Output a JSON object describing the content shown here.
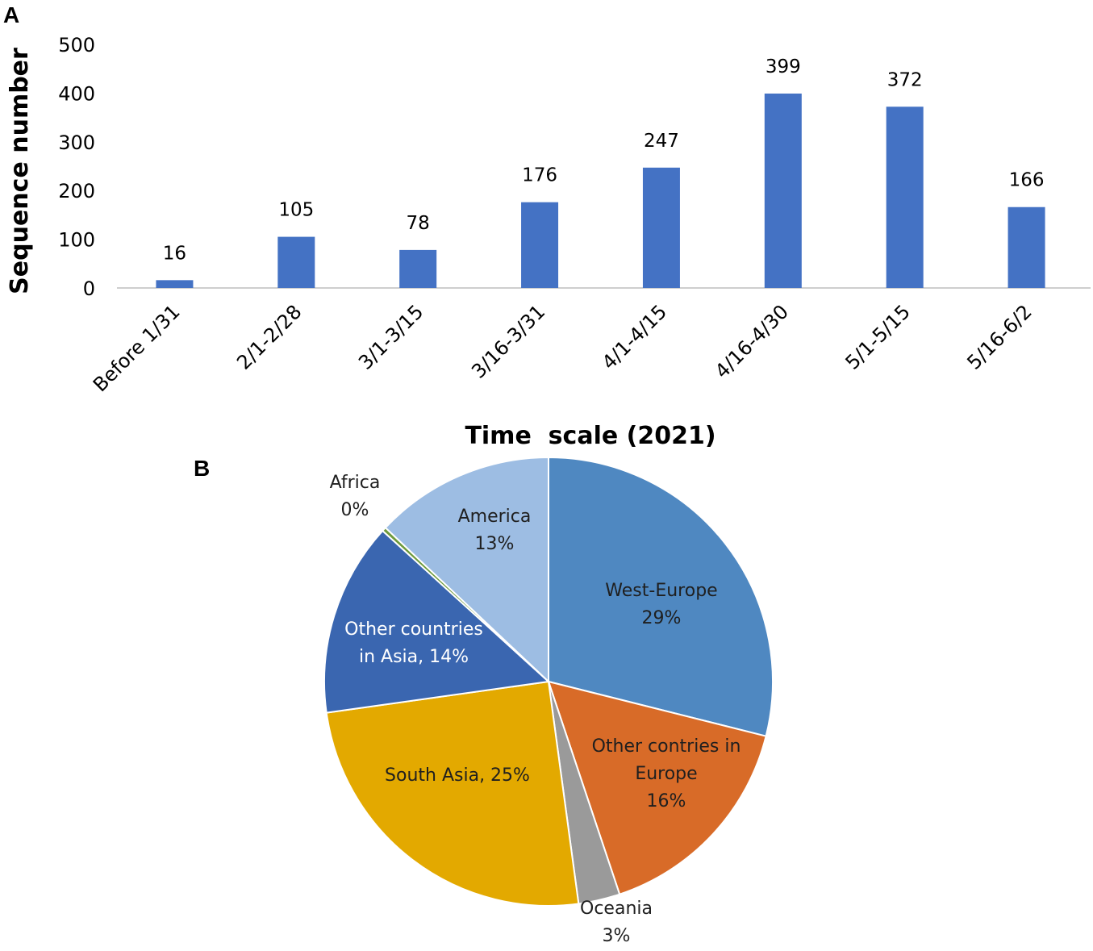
{
  "chart_data": [
    {
      "panel": "A",
      "type": "bar",
      "xlabel": "Time  scale (2021)",
      "ylabel": "Sequence number",
      "ylim": [
        0,
        500
      ],
      "yticks": [
        "0",
        "100",
        "200",
        "300",
        "400",
        "500"
      ],
      "grid": false,
      "color": "#4472c4",
      "categories": [
        "Before 1/31",
        "2/1-2/28",
        "3/1-3/15",
        "3/16-3/31",
        "4/1-4/15",
        "4/16-4/30",
        "5/1-5/15",
        "5/16-6/2"
      ],
      "values": [
        16,
        105,
        78,
        176,
        247,
        399,
        372,
        166
      ],
      "data_labels": [
        "16",
        "105",
        "78",
        "176",
        "247",
        "399",
        "372",
        "166"
      ]
    },
    {
      "panel": "B",
      "type": "pie",
      "slices": [
        {
          "label_lines": [
            "West-Europe",
            "29%"
          ],
          "value": 29,
          "color": "#4f88c1",
          "text_color": "#1f1f1f"
        },
        {
          "label_lines": [
            "Other contries in",
            "Europe",
            "16%"
          ],
          "value": 16,
          "color": "#d86b28",
          "text_color": "#1f1f1f"
        },
        {
          "label_lines": [
            "Oceania",
            "3%"
          ],
          "value": 3,
          "color": "#9a9a9a",
          "text_color": "#1f1f1f"
        },
        {
          "label_lines": [
            "South Asia, 25%"
          ],
          "value": 25,
          "color": "#e3a900",
          "text_color": "#1f1f1f"
        },
        {
          "label_lines": [
            "Other countries",
            "in Asia, 14%"
          ],
          "value": 14,
          "color": "#3a66b0",
          "text_color": "#ffffff"
        },
        {
          "label_lines": [
            "Africa",
            "0%"
          ],
          "value": 0.3,
          "color": "#6e9a3c",
          "text_color": "#1f1f1f"
        },
        {
          "label_lines": [
            "America",
            "13%"
          ],
          "value": 13,
          "color": "#9dbde3",
          "text_color": "#1f1f1f"
        }
      ]
    }
  ],
  "panels": {
    "a": "A",
    "b": "B"
  }
}
